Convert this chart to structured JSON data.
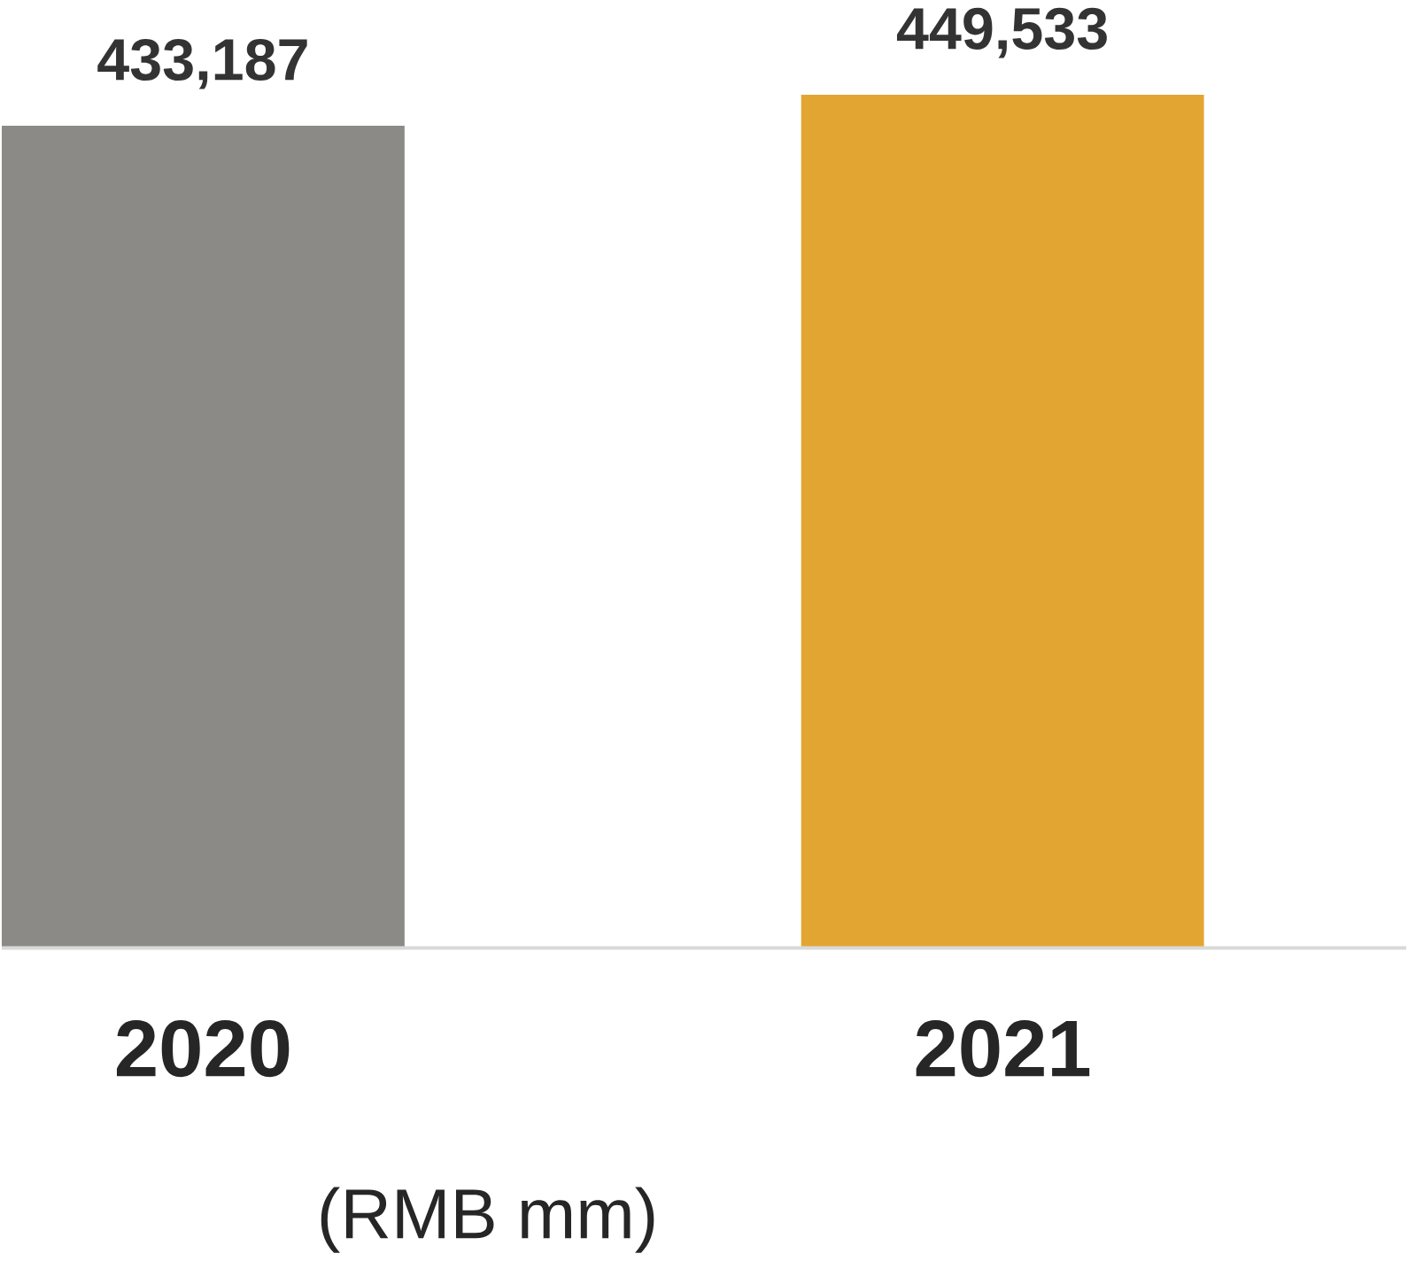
{
  "chart_data": {
    "type": "bar",
    "categories": [
      "2020",
      "2021"
    ],
    "values": [
      433187,
      449533
    ],
    "colors": [
      "#8c8a86",
      "#e3a532"
    ],
    "data_labels": true,
    "value_labels": [
      "433,187",
      "449,533"
    ],
    "annotations": [
      "(RMB mm)"
    ]
  }
}
